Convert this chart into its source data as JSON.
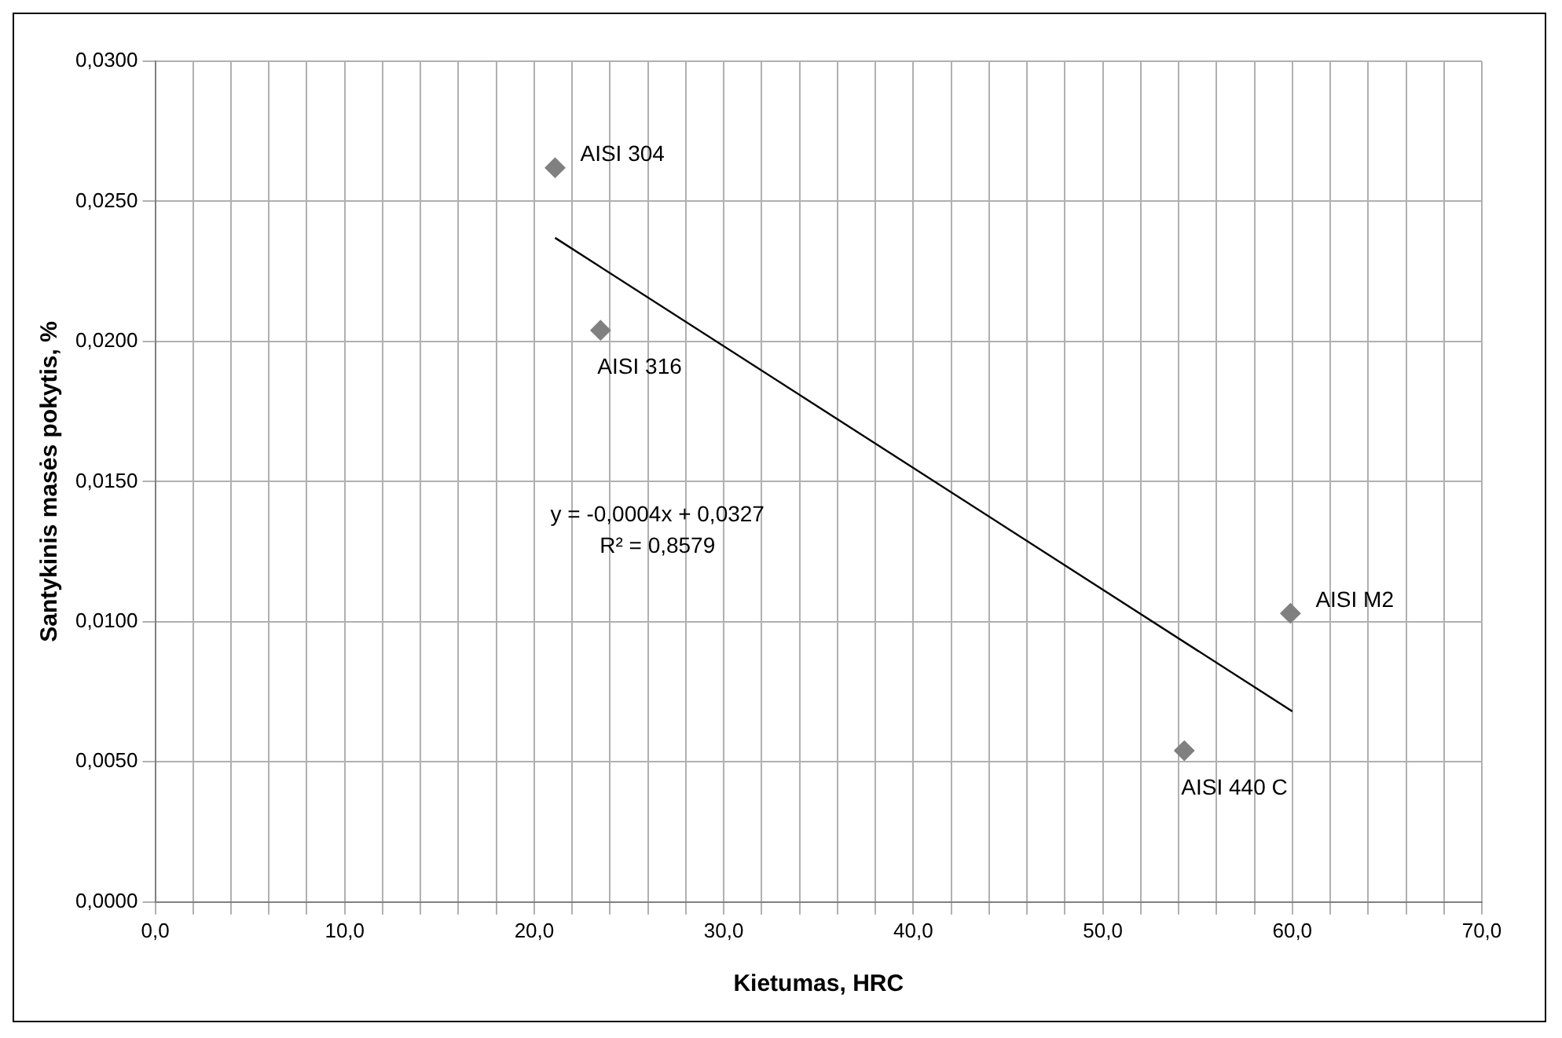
{
  "chart_data": {
    "type": "scatter",
    "xlabel": "Kietumas, HRC",
    "ylabel": "Santykinis masės pokytis, %",
    "xlim": [
      0,
      70
    ],
    "xticks": [
      {
        "value": 0,
        "label": "0,0"
      },
      {
        "value": 2,
        "label": null
      },
      {
        "value": 4,
        "label": null
      },
      {
        "value": 6,
        "label": null
      },
      {
        "value": 8,
        "label": null
      },
      {
        "value": 10,
        "label": "10,0"
      },
      {
        "value": 12,
        "label": null
      },
      {
        "value": 14,
        "label": null
      },
      {
        "value": 16,
        "label": null
      },
      {
        "value": 18,
        "label": null
      },
      {
        "value": 20,
        "label": "20,0"
      },
      {
        "value": 22,
        "label": null
      },
      {
        "value": 24,
        "label": null
      },
      {
        "value": 26,
        "label": null
      },
      {
        "value": 28,
        "label": null
      },
      {
        "value": 30,
        "label": "30,0"
      },
      {
        "value": 32,
        "label": null
      },
      {
        "value": 34,
        "label": null
      },
      {
        "value": 36,
        "label": null
      },
      {
        "value": 38,
        "label": null
      },
      {
        "value": 40,
        "label": "40,0"
      },
      {
        "value": 42,
        "label": null
      },
      {
        "value": 44,
        "label": null
      },
      {
        "value": 46,
        "label": null
      },
      {
        "value": 48,
        "label": null
      },
      {
        "value": 50,
        "label": "50,0"
      },
      {
        "value": 52,
        "label": null
      },
      {
        "value": 54,
        "label": null
      },
      {
        "value": 56,
        "label": null
      },
      {
        "value": 58,
        "label": null
      },
      {
        "value": 60,
        "label": "60,0"
      },
      {
        "value": 62,
        "label": null
      },
      {
        "value": 64,
        "label": null
      },
      {
        "value": 66,
        "label": null
      },
      {
        "value": 68,
        "label": null
      },
      {
        "value": 70,
        "label": "70,0"
      }
    ],
    "ylim": [
      0,
      0.03
    ],
    "yticks": [
      {
        "value": 0,
        "label": "0,0000"
      },
      {
        "value": 0.005,
        "label": "0,0050"
      },
      {
        "value": 0.01,
        "label": "0,0100"
      },
      {
        "value": 0.015,
        "label": "0,0150"
      },
      {
        "value": 0.02,
        "label": "0,0200"
      },
      {
        "value": 0.025,
        "label": "0,0250"
      },
      {
        "value": 0.03,
        "label": "0,0300"
      }
    ],
    "grid": true,
    "series": [
      {
        "type": "scatter",
        "color": "#808080",
        "marker": "diamond",
        "x": [
          21.1,
          23.5,
          54.3,
          59.9
        ],
        "values": [
          0.0262,
          0.0204,
          0.0054,
          0.0103
        ]
      },
      {
        "type": "line",
        "color": "#000000",
        "marker": "none",
        "x": [
          21.1,
          60
        ],
        "values": [
          0.0237,
          0.0068
        ]
      }
    ],
    "annotations": [
      {
        "text": "AISI 304",
        "x": 21.1,
        "y": 0.0262
      },
      {
        "text": "AISI 316",
        "x": 23.5,
        "y": 0.0204
      },
      {
        "text": "AISI 440 C",
        "x": 54.3,
        "y": 0.0054
      },
      {
        "text": "AISI M2",
        "x": 59.9,
        "y": 0.0103
      },
      "y = -0,0004x + 0,0327",
      "R² = 0,8579"
    ]
  }
}
